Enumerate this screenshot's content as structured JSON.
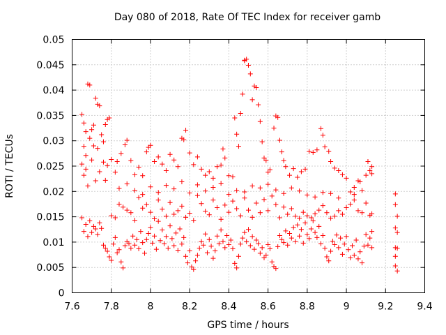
{
  "chart_data": {
    "type": "scatter",
    "title": "Day 080 of 2018, Rate Of TEC Index for receiver gamb",
    "xlabel": "GPS time / hours",
    "ylabel": "ROTI / TECUs",
    "xlim": [
      7.6,
      9.4
    ],
    "ylim": [
      0,
      0.05
    ],
    "xticks": [
      7.6,
      7.8,
      8.0,
      8.2,
      8.4,
      8.6,
      8.8,
      9.0,
      9.2,
      9.4
    ],
    "xtick_labels": [
      "7.6",
      "7.8",
      "8",
      "8.2",
      "8.4",
      "8.6",
      "8.8",
      "9",
      "9.2",
      "9.4"
    ],
    "yticks": [
      0,
      0.005,
      0.01,
      0.015,
      0.02,
      0.025,
      0.03,
      0.035,
      0.04,
      0.045,
      0.05
    ],
    "ytick_labels": [
      "0",
      "0.005",
      "0.01",
      "0.015",
      "0.02",
      "0.025",
      "0.03",
      "0.035",
      "0.04",
      "0.045",
      "0.05"
    ],
    "grid": true,
    "marker": "+",
    "marker_color": "#ff0000",
    "points": [
      [
        7.65,
        0.0352
      ],
      [
        7.66,
        0.0289
      ],
      [
        7.66,
        0.0335
      ],
      [
        7.67,
        0.0271
      ],
      [
        7.67,
        0.0318
      ],
      [
        7.68,
        0.0412
      ],
      [
        7.69,
        0.041
      ],
      [
        7.69,
        0.0305
      ],
      [
        7.7,
        0.0322
      ],
      [
        7.71,
        0.0331
      ],
      [
        7.71,
        0.029
      ],
      [
        7.72,
        0.0384
      ],
      [
        7.73,
        0.0372
      ],
      [
        7.73,
        0.0285
      ],
      [
        7.74,
        0.0369
      ],
      [
        7.75,
        0.0312
      ],
      [
        7.76,
        0.0298
      ],
      [
        7.77,
        0.0332
      ],
      [
        7.78,
        0.0342
      ],
      [
        7.79,
        0.0345
      ],
      [
        7.65,
        0.0254
      ],
      [
        7.66,
        0.0232
      ],
      [
        7.67,
        0.0244
      ],
      [
        7.68,
        0.0211
      ],
      [
        7.7,
        0.0262
      ],
      [
        7.72,
        0.0221
      ],
      [
        7.74,
        0.0239
      ],
      [
        7.76,
        0.0258
      ],
      [
        7.77,
        0.0222
      ],
      [
        7.78,
        0.0251
      ],
      [
        7.8,
        0.0263
      ],
      [
        7.82,
        0.0238
      ],
      [
        7.83,
        0.0259
      ],
      [
        7.85,
        0.0275
      ],
      [
        7.87,
        0.0292
      ],
      [
        7.88,
        0.0301
      ],
      [
        7.9,
        0.0261
      ],
      [
        7.92,
        0.0233
      ],
      [
        7.94,
        0.0248
      ],
      [
        7.96,
        0.0231
      ],
      [
        7.98,
        0.0278
      ],
      [
        7.99,
        0.0287
      ],
      [
        8.0,
        0.0291
      ],
      [
        8.02,
        0.0259
      ],
      [
        8.04,
        0.0268
      ],
      [
        8.06,
        0.0254
      ],
      [
        8.08,
        0.0241
      ],
      [
        8.1,
        0.0273
      ],
      [
        8.12,
        0.0262
      ],
      [
        8.14,
        0.0249
      ],
      [
        8.16,
        0.0305
      ],
      [
        8.17,
        0.0302
      ],
      [
        8.18,
        0.0321
      ],
      [
        8.2,
        0.0276
      ],
      [
        8.22,
        0.0253
      ],
      [
        8.24,
        0.0268
      ],
      [
        8.26,
        0.0244
      ],
      [
        8.28,
        0.0232
      ],
      [
        8.3,
        0.0239
      ],
      [
        8.32,
        0.0226
      ],
      [
        8.34,
        0.0249
      ],
      [
        8.36,
        0.0252
      ],
      [
        8.37,
        0.0284
      ],
      [
        8.38,
        0.0266
      ],
      [
        8.4,
        0.0231
      ],
      [
        8.42,
        0.0229
      ],
      [
        8.43,
        0.0345
      ],
      [
        8.44,
        0.0313
      ],
      [
        8.45,
        0.0289
      ],
      [
        8.46,
        0.0354
      ],
      [
        8.47,
        0.0392
      ],
      [
        8.48,
        0.0459
      ],
      [
        8.48,
        0.0458
      ],
      [
        8.49,
        0.0461
      ],
      [
        8.5,
        0.0449
      ],
      [
        8.51,
        0.0432
      ],
      [
        8.52,
        0.0381
      ],
      [
        8.53,
        0.0408
      ],
      [
        8.54,
        0.0405
      ],
      [
        8.55,
        0.0371
      ],
      [
        8.56,
        0.0338
      ],
      [
        8.57,
        0.0298
      ],
      [
        8.58,
        0.0266
      ],
      [
        8.59,
        0.0261
      ],
      [
        8.6,
        0.0238
      ],
      [
        8.61,
        0.0243
      ],
      [
        8.63,
        0.0325
      ],
      [
        8.64,
        0.0349
      ],
      [
        8.65,
        0.0346
      ],
      [
        8.66,
        0.0301
      ],
      [
        8.67,
        0.0278
      ],
      [
        8.68,
        0.0261
      ],
      [
        8.69,
        0.0249
      ],
      [
        8.71,
        0.0232
      ],
      [
        8.73,
        0.0245
      ],
      [
        8.75,
        0.0228
      ],
      [
        8.77,
        0.0239
      ],
      [
        8.79,
        0.0244
      ],
      [
        8.81,
        0.0279
      ],
      [
        8.83,
        0.0277
      ],
      [
        8.85,
        0.0282
      ],
      [
        8.87,
        0.0324
      ],
      [
        8.88,
        0.0311
      ],
      [
        8.89,
        0.0288
      ],
      [
        8.91,
        0.0279
      ],
      [
        8.92,
        0.0259
      ],
      [
        8.94,
        0.0246
      ],
      [
        8.96,
        0.0241
      ],
      [
        8.98,
        0.0233
      ],
      [
        9.0,
        0.0226
      ],
      [
        9.02,
        0.0199
      ],
      [
        9.04,
        0.0208
      ],
      [
        9.06,
        0.0221
      ],
      [
        9.07,
        0.0219
      ],
      [
        9.08,
        0.0202
      ],
      [
        9.1,
        0.0232
      ],
      [
        9.11,
        0.0259
      ],
      [
        9.12,
        0.0241
      ],
      [
        9.13,
        0.0249
      ],
      [
        9.13,
        0.0235
      ],
      [
        7.65,
        0.0148
      ],
      [
        7.66,
        0.0121
      ],
      [
        7.67,
        0.0135
      ],
      [
        7.68,
        0.0111
      ],
      [
        7.69,
        0.0142
      ],
      [
        7.7,
        0.0119
      ],
      [
        7.71,
        0.0131
      ],
      [
        7.72,
        0.0126
      ],
      [
        7.73,
        0.0115
      ],
      [
        7.74,
        0.0138
      ],
      [
        7.75,
        0.0127
      ],
      [
        7.76,
        0.0094
      ],
      [
        7.77,
        0.0088
      ],
      [
        7.78,
        0.0082
      ],
      [
        7.79,
        0.0071
      ],
      [
        7.8,
        0.0064
      ],
      [
        7.81,
        0.0096
      ],
      [
        7.82,
        0.0109
      ],
      [
        7.83,
        0.0079
      ],
      [
        7.84,
        0.0085
      ],
      [
        7.85,
        0.0061
      ],
      [
        7.86,
        0.0049
      ],
      [
        7.87,
        0.0093
      ],
      [
        7.88,
        0.0101
      ],
      [
        7.89,
        0.0097
      ],
      [
        7.9,
        0.0088
      ],
      [
        7.91,
        0.0112
      ],
      [
        7.92,
        0.0094
      ],
      [
        7.93,
        0.0105
      ],
      [
        7.94,
        0.0087
      ],
      [
        7.95,
        0.0121
      ],
      [
        7.96,
        0.0099
      ],
      [
        7.97,
        0.0078
      ],
      [
        7.98,
        0.0105
      ],
      [
        7.99,
        0.0117
      ],
      [
        8.0,
        0.0129
      ],
      [
        8.01,
        0.0098
      ],
      [
        8.02,
        0.0112
      ],
      [
        8.03,
        0.0086
      ],
      [
        8.04,
        0.0141
      ],
      [
        8.05,
        0.0103
      ],
      [
        8.06,
        0.0124
      ],
      [
        8.07,
        0.0097
      ],
      [
        8.08,
        0.0111
      ],
      [
        8.09,
        0.0088
      ],
      [
        8.1,
        0.0132
      ],
      [
        8.11,
        0.0107
      ],
      [
        8.12,
        0.0093
      ],
      [
        8.13,
        0.0118
      ],
      [
        8.14,
        0.0084
      ],
      [
        8.15,
        0.0126
      ],
      [
        8.16,
        0.0096
      ],
      [
        8.17,
        0.0109
      ],
      [
        8.18,
        0.0072
      ],
      [
        8.19,
        0.0059
      ],
      [
        8.2,
        0.0083
      ],
      [
        8.21,
        0.0051
      ],
      [
        8.22,
        0.0046
      ],
      [
        8.23,
        0.0063
      ],
      [
        8.24,
        0.0074
      ],
      [
        8.25,
        0.0088
      ],
      [
        8.26,
        0.0101
      ],
      [
        8.27,
        0.0094
      ],
      [
        8.28,
        0.0116
      ],
      [
        8.29,
        0.0079
      ],
      [
        8.3,
        0.0105
      ],
      [
        8.31,
        0.0092
      ],
      [
        8.32,
        0.0068
      ],
      [
        8.33,
        0.0083
      ],
      [
        8.34,
        0.0112
      ],
      [
        8.35,
        0.0097
      ],
      [
        8.36,
        0.0124
      ],
      [
        8.37,
        0.0101
      ],
      [
        8.38,
        0.0089
      ],
      [
        8.39,
        0.0113
      ],
      [
        8.4,
        0.0095
      ],
      [
        8.41,
        0.0104
      ],
      [
        8.42,
        0.0087
      ],
      [
        8.43,
        0.0058
      ],
      [
        8.44,
        0.0049
      ],
      [
        8.45,
        0.0072
      ],
      [
        8.46,
        0.0096
      ],
      [
        8.47,
        0.0108
      ],
      [
        8.48,
        0.0119
      ],
      [
        8.49,
        0.0101
      ],
      [
        8.5,
        0.0125
      ],
      [
        8.51,
        0.0093
      ],
      [
        8.52,
        0.0111
      ],
      [
        8.53,
        0.0086
      ],
      [
        8.54,
        0.0104
      ],
      [
        8.55,
        0.0097
      ],
      [
        8.56,
        0.0078
      ],
      [
        8.57,
        0.0089
      ],
      [
        8.58,
        0.0069
      ],
      [
        8.59,
        0.0074
      ],
      [
        8.6,
        0.0095
      ],
      [
        8.61,
        0.0087
      ],
      [
        8.62,
        0.0061
      ],
      [
        8.63,
        0.0052
      ],
      [
        8.64,
        0.0048
      ],
      [
        8.65,
        0.0091
      ],
      [
        8.66,
        0.0113
      ],
      [
        8.67,
        0.0105
      ],
      [
        8.68,
        0.0099
      ],
      [
        8.69,
        0.0122
      ],
      [
        8.7,
        0.0094
      ],
      [
        8.71,
        0.0117
      ],
      [
        8.72,
        0.0108
      ],
      [
        8.73,
        0.0129
      ],
      [
        8.74,
        0.0101
      ],
      [
        8.75,
        0.0134
      ],
      [
        8.76,
        0.0112
      ],
      [
        8.77,
        0.0125
      ],
      [
        8.78,
        0.0098
      ],
      [
        8.79,
        0.0138
      ],
      [
        8.8,
        0.0115
      ],
      [
        8.81,
        0.0107
      ],
      [
        8.82,
        0.0126
      ],
      [
        8.83,
        0.0142
      ],
      [
        8.84,
        0.0119
      ],
      [
        8.85,
        0.0109
      ],
      [
        8.86,
        0.0131
      ],
      [
        8.87,
        0.0097
      ],
      [
        8.88,
        0.0113
      ],
      [
        8.89,
        0.0088
      ],
      [
        8.9,
        0.0071
      ],
      [
        8.91,
        0.0063
      ],
      [
        8.92,
        0.0082
      ],
      [
        8.93,
        0.0102
      ],
      [
        8.94,
        0.0095
      ],
      [
        8.95,
        0.0114
      ],
      [
        8.96,
        0.0089
      ],
      [
        8.97,
        0.0108
      ],
      [
        8.98,
        0.0076
      ],
      [
        8.99,
        0.0096
      ],
      [
        9.0,
        0.0111
      ],
      [
        9.01,
        0.0085
      ],
      [
        9.02,
        0.0069
      ],
      [
        9.03,
        0.0093
      ],
      [
        9.04,
        0.0074
      ],
      [
        9.05,
        0.0104
      ],
      [
        9.06,
        0.0067
      ],
      [
        9.07,
        0.0081
      ],
      [
        9.08,
        0.0059
      ],
      [
        9.09,
        0.0092
      ],
      [
        9.1,
        0.0115
      ],
      [
        9.11,
        0.0094
      ],
      [
        9.12,
        0.0108
      ],
      [
        9.13,
        0.0089
      ],
      [
        9.13,
        0.0121
      ],
      [
        7.8,
        0.0152
      ],
      [
        7.82,
        0.0148
      ],
      [
        7.84,
        0.0175
      ],
      [
        7.86,
        0.0169
      ],
      [
        7.88,
        0.0163
      ],
      [
        7.9,
        0.0158
      ],
      [
        7.92,
        0.0143
      ],
      [
        7.94,
        0.0188
      ],
      [
        7.96,
        0.0167
      ],
      [
        7.98,
        0.0174
      ],
      [
        8.0,
        0.0159
      ],
      [
        8.02,
        0.0146
      ],
      [
        8.04,
        0.0183
      ],
      [
        8.06,
        0.0165
      ],
      [
        8.08,
        0.0151
      ],
      [
        8.1,
        0.0178
      ],
      [
        8.12,
        0.0155
      ],
      [
        8.14,
        0.0162
      ],
      [
        8.16,
        0.0171
      ],
      [
        8.18,
        0.0149
      ],
      [
        8.2,
        0.0157
      ],
      [
        8.22,
        0.0143
      ],
      [
        8.24,
        0.0192
      ],
      [
        8.26,
        0.0176
      ],
      [
        8.28,
        0.0161
      ],
      [
        8.3,
        0.0154
      ],
      [
        8.32,
        0.0183
      ],
      [
        8.34,
        0.0168
      ],
      [
        8.36,
        0.0145
      ],
      [
        8.38,
        0.0173
      ],
      [
        8.4,
        0.0159
      ],
      [
        8.42,
        0.0181
      ],
      [
        8.44,
        0.0166
      ],
      [
        8.46,
        0.0152
      ],
      [
        8.48,
        0.0187
      ],
      [
        8.5,
        0.0163
      ],
      [
        8.52,
        0.0149
      ],
      [
        8.54,
        0.0177
      ],
      [
        8.56,
        0.0158
      ],
      [
        8.58,
        0.0184
      ],
      [
        8.6,
        0.0162
      ],
      [
        8.62,
        0.0191
      ],
      [
        8.64,
        0.0174
      ],
      [
        8.66,
        0.0148
      ],
      [
        8.68,
        0.0169
      ],
      [
        8.7,
        0.0155
      ],
      [
        8.72,
        0.0166
      ],
      [
        8.74,
        0.0151
      ],
      [
        8.76,
        0.0147
      ],
      [
        8.78,
        0.0159
      ],
      [
        8.8,
        0.0152
      ],
      [
        8.82,
        0.0148
      ],
      [
        8.84,
        0.0156
      ],
      [
        8.86,
        0.0163
      ],
      [
        8.88,
        0.0172
      ],
      [
        8.9,
        0.0158
      ],
      [
        8.92,
        0.0147
      ],
      [
        8.94,
        0.0151
      ],
      [
        8.96,
        0.0162
      ],
      [
        8.98,
        0.0155
      ],
      [
        9.0,
        0.0168
      ],
      [
        9.02,
        0.0175
      ],
      [
        9.04,
        0.0183
      ],
      [
        9.06,
        0.0162
      ],
      [
        9.08,
        0.0158
      ],
      [
        9.1,
        0.0177
      ],
      [
        9.12,
        0.0153
      ],
      [
        9.13,
        0.0156
      ],
      [
        7.84,
        0.0206
      ],
      [
        7.88,
        0.0215
      ],
      [
        7.92,
        0.0202
      ],
      [
        7.96,
        0.0194
      ],
      [
        8.0,
        0.0209
      ],
      [
        8.04,
        0.0198
      ],
      [
        8.08,
        0.0212
      ],
      [
        8.12,
        0.0205
      ],
      [
        8.16,
        0.0219
      ],
      [
        8.2,
        0.0197
      ],
      [
        8.24,
        0.0213
      ],
      [
        8.28,
        0.0201
      ],
      [
        8.32,
        0.0208
      ],
      [
        8.36,
        0.0216
      ],
      [
        8.4,
        0.0194
      ],
      [
        8.44,
        0.0202
      ],
      [
        8.48,
        0.0199
      ],
      [
        8.52,
        0.0211
      ],
      [
        8.56,
        0.0207
      ],
      [
        8.6,
        0.0214
      ],
      [
        8.64,
        0.0203
      ],
      [
        8.68,
        0.0196
      ],
      [
        8.72,
        0.0207
      ],
      [
        8.76,
        0.0201
      ],
      [
        8.8,
        0.0193
      ],
      [
        8.84,
        0.0189
      ],
      [
        8.88,
        0.0198
      ],
      [
        8.92,
        0.0196
      ],
      [
        8.96,
        0.0187
      ],
      [
        9.04,
        0.0194
      ],
      [
        9.25,
        0.0195
      ],
      [
        9.25,
        0.0174
      ],
      [
        9.26,
        0.0151
      ],
      [
        9.25,
        0.0128
      ],
      [
        9.26,
        0.0119
      ],
      [
        9.25,
        0.0089
      ],
      [
        9.26,
        0.0088
      ],
      [
        9.25,
        0.0072
      ],
      [
        9.25,
        0.0053
      ],
      [
        9.26,
        0.0043
      ]
    ]
  }
}
